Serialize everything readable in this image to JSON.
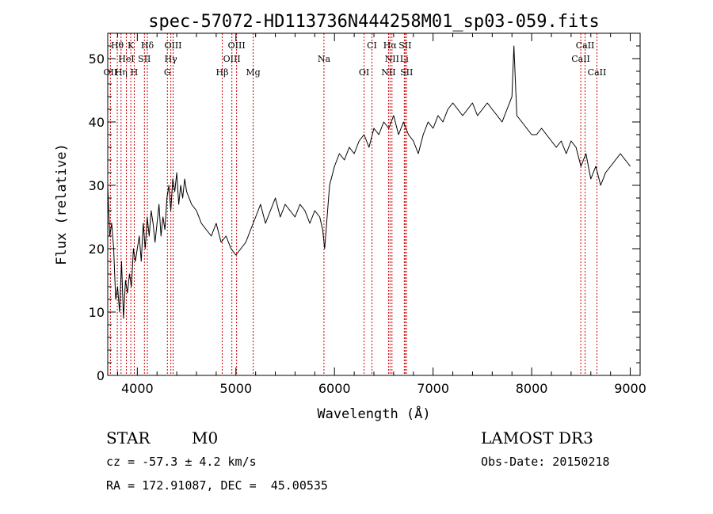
{
  "chart_data": {
    "type": "line",
    "title": "spec-57072-HD113736N444258M01_sp03-059.fits",
    "xlabel": "Wavelength (Å)",
    "ylabel": "Flux (relative)",
    "xlim": [
      3700,
      9100
    ],
    "ylim": [
      0,
      54
    ],
    "x_ticks": [
      4000,
      5000,
      6000,
      7000,
      8000,
      9000
    ],
    "y_ticks": [
      0,
      10,
      20,
      30,
      40,
      50
    ],
    "grid": false,
    "series": [
      {
        "x": [
          3700,
          3720,
          3740,
          3760,
          3780,
          3800,
          3820,
          3840,
          3860,
          3880,
          3900,
          3920,
          3940,
          3960,
          3980,
          4000,
          4020,
          4040,
          4060,
          4080,
          4100,
          4120,
          4140,
          4160,
          4180,
          4200,
          4220,
          4240,
          4260,
          4280,
          4300,
          4320,
          4340,
          4360,
          4380,
          4400,
          4420,
          4440,
          4460,
          4480,
          4500,
          4550,
          4600,
          4650,
          4700,
          4750,
          4800,
          4850,
          4900,
          4950,
          5000,
          5050,
          5100,
          5150,
          5200,
          5250,
          5300,
          5350,
          5400,
          5450,
          5500,
          5550,
          5600,
          5650,
          5700,
          5750,
          5800,
          5850,
          5880,
          5900,
          5920,
          5950,
          6000,
          6050,
          6100,
          6150,
          6200,
          6250,
          6300,
          6350,
          6400,
          6450,
          6500,
          6550,
          6600,
          6650,
          6700,
          6750,
          6800,
          6850,
          6900,
          6950,
          7000,
          7050,
          7100,
          7150,
          7200,
          7250,
          7300,
          7350,
          7400,
          7450,
          7500,
          7550,
          7600,
          7650,
          7700,
          7750,
          7800,
          7820,
          7850,
          7900,
          7950,
          8000,
          8050,
          8100,
          8150,
          8200,
          8250,
          8300,
          8350,
          8400,
          8450,
          8500,
          8550,
          8600,
          8650,
          8700,
          8750,
          8800,
          8850,
          8900,
          8950,
          9000
        ],
        "y": [
          30,
          22,
          24,
          20,
          12,
          14,
          10,
          18,
          9,
          15,
          13,
          16,
          14,
          20,
          18,
          20,
          22,
          18,
          24,
          20,
          25,
          22,
          26,
          24,
          21,
          24,
          27,
          22,
          25,
          23,
          28,
          30,
          26,
          31,
          29,
          32,
          27,
          30,
          28,
          31,
          29,
          27,
          26,
          24,
          23,
          22,
          24,
          21,
          22,
          20,
          19,
          20,
          21,
          23,
          25,
          27,
          24,
          26,
          28,
          25,
          27,
          26,
          25,
          27,
          26,
          24,
          26,
          25,
          23,
          20,
          24,
          30,
          33,
          35,
          34,
          36,
          35,
          37,
          38,
          36,
          39,
          38,
          40,
          39,
          41,
          38,
          40,
          38,
          37,
          35,
          38,
          40,
          39,
          41,
          40,
          42,
          43,
          42,
          41,
          42,
          43,
          41,
          42,
          43,
          42,
          41,
          40,
          42,
          44,
          52,
          41,
          40,
          39,
          38,
          38,
          39,
          38,
          37,
          36,
          37,
          35,
          37,
          36,
          33,
          35,
          31,
          33,
          30,
          32,
          33,
          34,
          35,
          34,
          33
        ]
      }
    ],
    "spectral_lines": [
      {
        "label": "Hθ",
        "x": 3797,
        "row": 0
      },
      {
        "label": "K",
        "x": 3934,
        "row": 0
      },
      {
        "label": "Hδ",
        "x": 4102,
        "row": 0
      },
      {
        "label": "OIII",
        "x": 4363,
        "row": 0
      },
      {
        "label": "OIII",
        "x": 5007,
        "row": 0
      },
      {
        "label": "CI",
        "x": 6380,
        "row": 0
      },
      {
        "label": "Hα",
        "x": 6563,
        "row": 0
      },
      {
        "label": "SII",
        "x": 6716,
        "row": 0
      },
      {
        "label": "CaII",
        "x": 8542,
        "row": 0
      },
      {
        "label": "HeI",
        "x": 3889,
        "row": 1
      },
      {
        "label": "SII",
        "x": 4072,
        "row": 1
      },
      {
        "label": "Hγ",
        "x": 4340,
        "row": 1
      },
      {
        "label": "OIII",
        "x": 4959,
        "row": 1
      },
      {
        "label": "Na",
        "x": 5893,
        "row": 1
      },
      {
        "label": "NII",
        "x": 6583,
        "row": 1
      },
      {
        "label": "Li",
        "x": 6708,
        "row": 1
      },
      {
        "label": "CaII",
        "x": 8498,
        "row": 1
      },
      {
        "label": "OII",
        "x": 3727,
        "row": 2
      },
      {
        "label": "Hη",
        "x": 3835,
        "row": 2
      },
      {
        "label": "H",
        "x": 3969,
        "row": 2
      },
      {
        "label": "G",
        "x": 4305,
        "row": 2
      },
      {
        "label": "Hβ",
        "x": 4861,
        "row": 2
      },
      {
        "label": "Mg",
        "x": 5175,
        "row": 2
      },
      {
        "label": "OI",
        "x": 6300,
        "row": 2
      },
      {
        "label": "NII",
        "x": 6548,
        "row": 2
      },
      {
        "label": "SII",
        "x": 6731,
        "row": 2
      },
      {
        "label": "CaII",
        "x": 8662,
        "row": 2
      }
    ],
    "line_marker_color": "#cc0000"
  },
  "info": {
    "object_class": "STAR",
    "subclass": "M0",
    "survey": "LAMOST DR3",
    "velocity": "cz = -57.3 ± 4.2 km/s",
    "obs_date": "Obs-Date: 20150218",
    "coordinates": "RA = 172.91087, DEC =  45.00535"
  }
}
